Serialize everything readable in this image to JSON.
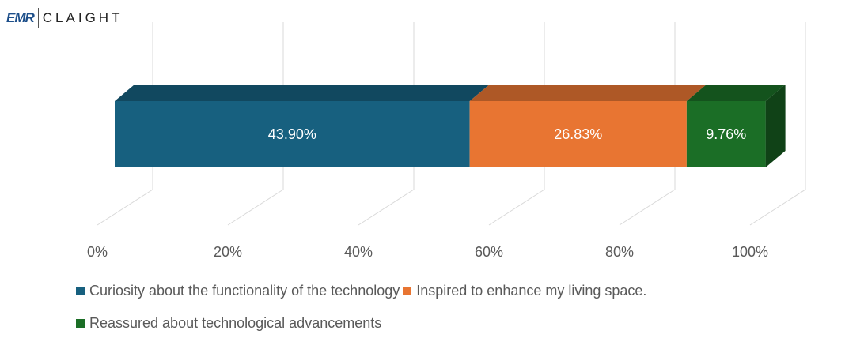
{
  "logo": {
    "brand": "EMR",
    "product": "CLAIGHT"
  },
  "chart_data": {
    "type": "bar",
    "orientation": "horizontal-stacked-3d",
    "categories": [
      ""
    ],
    "series": [
      {
        "name": "Curiosity about the functionality of the technology",
        "values": [
          43.9
        ],
        "label": "43.90%",
        "color": "#17607f"
      },
      {
        "name": "Inspired to enhance my living space.",
        "values": [
          26.83
        ],
        "label": "26.83%",
        "color": "#e87532"
      },
      {
        "name": "Reassured about technological advancements",
        "values": [
          9.76
        ],
        "label": "9.76%",
        "color": "#1b6e26"
      }
    ],
    "xticks": [
      "0%",
      "20%",
      "40%",
      "60%",
      "80%",
      "100%"
    ],
    "xlim": [
      0,
      100
    ],
    "grid": true,
    "legend": "bottom"
  }
}
